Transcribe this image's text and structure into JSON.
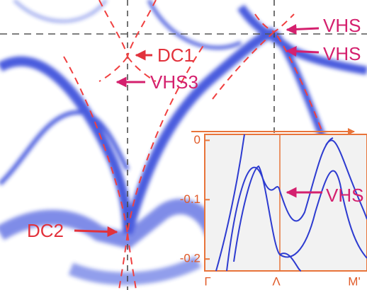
{
  "labels": {
    "dc1": "DC1",
    "vhs3": "VHS3",
    "dc2": "DC2",
    "vhs_top": "VHS",
    "vhs_mid": "VHS"
  },
  "inset": {
    "ylim": [
      -0.22,
      0.01
    ],
    "yticks": [
      0,
      -0.1,
      -0.2
    ],
    "xticks": [
      "Γ",
      "Λ",
      "M'"
    ],
    "annotation": "VHS"
  }
}
